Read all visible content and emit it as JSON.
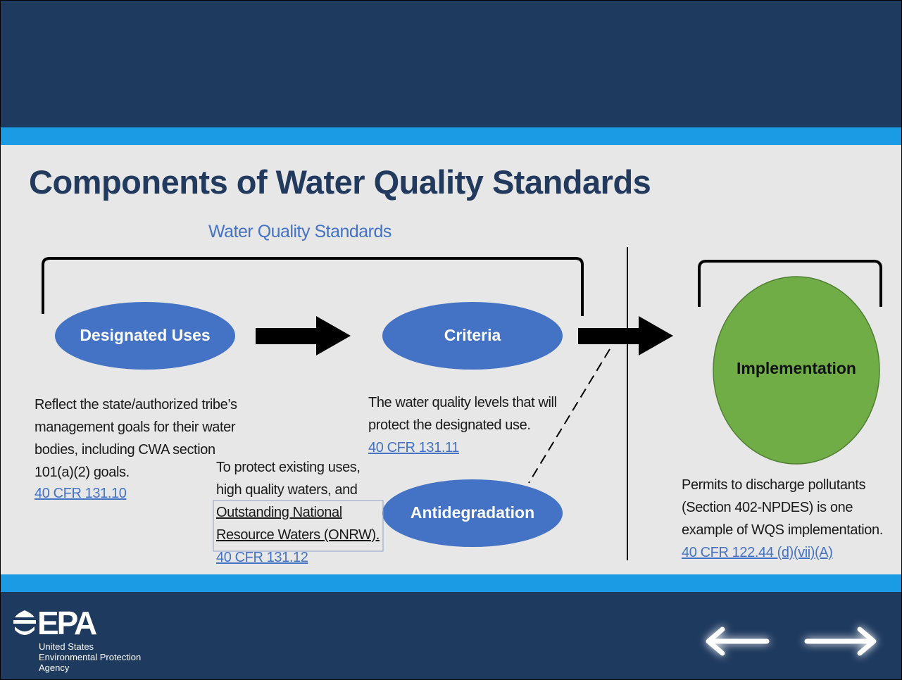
{
  "title": "Components of Water Quality Standards",
  "bracket_label": "Water Quality Standards",
  "nodes": [
    {
      "label": "Designated Uses",
      "lines": [
        "Reflect the state/authorized tribe’s",
        "management goals for their water",
        "bodies, including CWA section",
        "101(a)(2) goals."
      ],
      "link": "40 CFR 131.10"
    },
    {
      "label": "Criteria",
      "lines": [
        "The water quality levels that will",
        "protect the designated use."
      ],
      "link": "40 CFR 131.11"
    },
    {
      "label": "Antidegradation",
      "lines": [
        "To protect existing uses,",
        "high quality waters, and",
        "Outstanding National",
        "Resource Waters (ONRW)."
      ],
      "link": "40 CFR 131.12"
    },
    {
      "label": "Implementation",
      "lines": [
        "Permits to discharge pollutants",
        "(Section 402-NPDES) is one",
        "example of WQS implementation."
      ],
      "link": "40 CFR 122.44 (d)(vii)(A)"
    }
  ],
  "logo": {
    "mark": "EPA",
    "lines": [
      "United States",
      "Environmental Protection",
      "Agency"
    ]
  }
}
